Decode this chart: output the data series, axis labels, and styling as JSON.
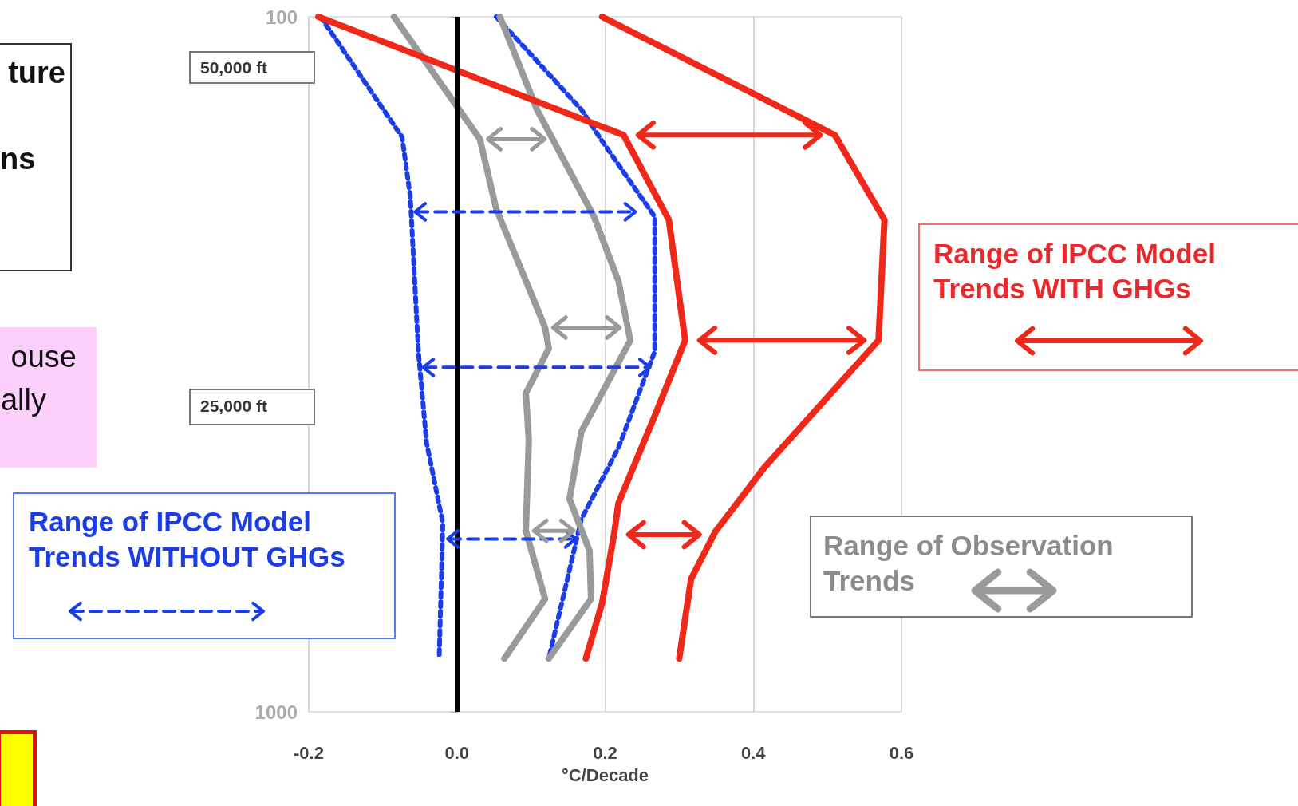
{
  "chart_data": {
    "type": "line",
    "xlabel": "°C/Decade",
    "log": "y",
    "grid": true,
    "xlim": [
      -0.2,
      0.6
    ],
    "xticks": [
      -0.2,
      {
        "value": 0,
        "label": "0.0"
      },
      0.2,
      0.4,
      0.6
    ],
    "ylim": [
      1000,
      100
    ],
    "yticks": [
      100,
      1000
    ],
    "series": [
      {
        "color": "#1a3de8",
        "line_style": "dotted",
        "x": [
          -0.184,
          -0.074,
          -0.063,
          -0.052,
          -0.041,
          -0.019,
          -0.024
        ],
        "values": [
          100,
          149,
          181,
          303,
          410,
          535,
          838
        ]
      },
      {
        "color": "#1a3de8",
        "line_style": "dotted",
        "x": [
          0.053,
          0.168,
          0.196,
          0.267,
          0.267,
          0.218,
          0.168,
          0.124
        ],
        "values": [
          100,
          136,
          151,
          194,
          303,
          417,
          528,
          838
        ]
      },
      {
        "color": "#9a9a9a",
        "line_style": "solid",
        "x": [
          -0.085,
          0.031,
          0.053,
          0.119,
          0.124,
          0.093,
          0.097,
          0.093,
          0.119,
          0.064
        ],
        "values": [
          100,
          150,
          189,
          280,
          300,
          348,
          406,
          549,
          688,
          838
        ]
      },
      {
        "color": "#9a9a9a",
        "line_style": "solid",
        "x": [
          0.058,
          0.108,
          0.185,
          0.218,
          0.234,
          0.168,
          0.152,
          0.179,
          0.181,
          0.124
        ],
        "values": [
          100,
          136,
          194,
          240,
          292,
          395,
          494,
          587,
          688,
          838
        ]
      },
      {
        "color": "#f0281a",
        "line_style": "solid",
        "x": [
          -0.187,
          0.225,
          0.286,
          0.308,
          0.267,
          0.218,
          0.212,
          0.196,
          0.174
        ],
        "values": [
          100,
          148,
          196,
          292,
          375,
          501,
          556,
          697,
          838
        ]
      },
      {
        "color": "#f0281a",
        "line_style": "solid",
        "x": [
          0.196,
          0.51,
          0.577,
          0.569,
          0.415,
          0.349,
          0.316,
          0.3
        ],
        "values": [
          100,
          148,
          196,
          292,
          445,
          550,
          644,
          838
        ]
      }
    ],
    "ref_lines": [
      {
        "axis": "x",
        "value": 0,
        "color": "#000000",
        "line_style": "solid"
      }
    ],
    "annotations": [
      "ture",
      "ns",
      "ouse",
      "ally",
      "50,000 ft",
      "25,000 ft",
      "Range of IPCC Model\nTrends WITHOUT GHGs",
      "Range of IPCC Model\nTrends WITH GHGs",
      "Range of Observation\nTrends"
    ]
  }
}
